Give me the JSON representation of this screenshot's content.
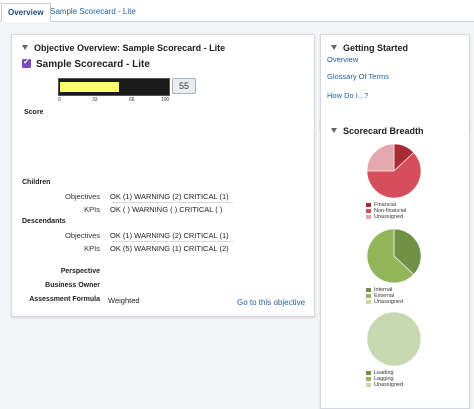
{
  "tabs": [
    {
      "label": "Overview"
    },
    {
      "label": "Sample Scorecard - Lite"
    }
  ],
  "objective_panel": {
    "title": "Objective Overview: Sample Scorecard - Lite",
    "scorecard_name": "Sample Scorecard - Lite",
    "score_label": "Score",
    "gauge": {
      "value": "55",
      "ticks": [
        "0",
        "33",
        "66",
        "100"
      ],
      "fill_fraction": 0.55,
      "fill_color": "#ffff66"
    },
    "children": {
      "title": "Children",
      "objectives_label": "Objectives",
      "objectives_value": "OK (1)  WARNING (2)  CRITICAL (1)",
      "kpis_label": "KPIs",
      "kpis_value": "OK ( )  WARNING ( )  CRITICAL ( )"
    },
    "descendants": {
      "title": "Descendants",
      "objectives_label": "Objectives",
      "objectives_value": "OK (1)  WARNING (2)  CRITICAL (1)",
      "kpis_label": "KPIs",
      "kpis_value": "OK (5)  WARNING (1)  CRITICAL (2)"
    },
    "perspective_label": "Perspective",
    "perspective_value": "",
    "business_owner_label": "Business Owner",
    "business_owner_value": "",
    "assessment_formula_label": "Assessment Formula",
    "assessment_formula_value": "Weighted",
    "goto_link": "Go to this objective"
  },
  "getting_started": {
    "title": "Getting Started",
    "links": [
      "Overview",
      "Glossary Of Terms",
      "How Do I...?"
    ]
  },
  "scorecard_breadth": {
    "title": "Scorecard Breadth",
    "pies": [
      {
        "legend": [
          "Financial",
          "Non-financial",
          "Unassigned"
        ],
        "colors": [
          "#a92c35",
          "#d44f5b",
          "#e5a7ae"
        ],
        "values": [
          0.13,
          0.62,
          0.25
        ]
      },
      {
        "legend": [
          "Internal",
          "External",
          "Unassigned"
        ],
        "colors": [
          "#6f9245",
          "#93b55a",
          "#c5d9a5"
        ],
        "values": [
          0.37,
          0.63,
          0.0
        ]
      },
      {
        "legend": [
          "Leading",
          "Lagging",
          "Unassigned"
        ],
        "colors": [
          "#6f9245",
          "#93b55a",
          "#c7d8b0"
        ],
        "values": [
          0.0,
          0.0,
          1.0
        ]
      }
    ]
  }
}
